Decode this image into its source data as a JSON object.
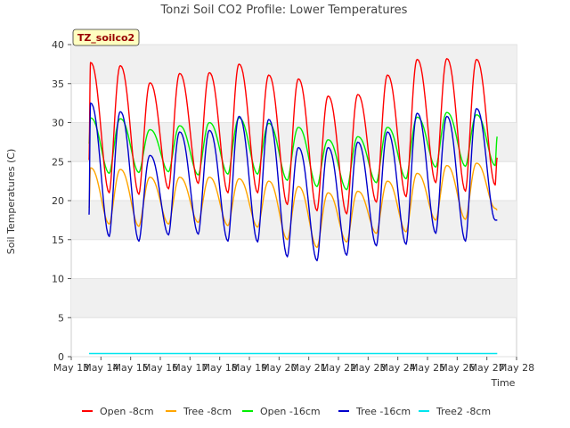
{
  "chart_data": {
    "type": "line",
    "title": "Tonzi Soil CO2 Profile: Lower Temperatures",
    "xlabel": "Time",
    "ylabel": "Soil Temperatures (C)",
    "site_label": "TZ_soilco2",
    "ylim": [
      0,
      40
    ],
    "yticks": [
      0,
      5,
      10,
      15,
      20,
      25,
      30,
      35,
      40
    ],
    "xlim": [
      13,
      28
    ],
    "xticks": [
      13,
      14,
      15,
      16,
      17,
      18,
      19,
      20,
      21,
      22,
      23,
      24,
      25,
      26,
      27,
      28
    ],
    "xtick_labels": [
      "May 13",
      "May 14",
      "May 15",
      "May 16",
      "May 17",
      "May 18",
      "May 19",
      "May 20",
      "May 21",
      "May 22",
      "May 23",
      "May 24",
      "May 25",
      "May 26",
      "May 27",
      "May 28"
    ],
    "grid": "horizontal bands",
    "legend": "bottom",
    "series": [
      {
        "name": "Open -8cm",
        "color": "#ff0000",
        "daily_min": [
          21.3,
          21.0,
          20.8,
          21.5,
          22.2,
          21.0,
          21.0,
          19.5,
          18.7,
          18.3,
          19.8,
          20.5,
          22.3,
          21.2,
          22.0
        ],
        "daily_max": [
          37.7,
          37.3,
          35.1,
          36.3,
          36.4,
          37.5,
          36.1,
          35.6,
          33.4,
          33.6,
          36.1,
          38.1,
          38.2,
          38.1
        ],
        "start": 25.2,
        "end": 25.5
      },
      {
        "name": "Tree -8cm",
        "color": "#ffa500",
        "daily_min": [
          18.0,
          17.0,
          16.7,
          17.0,
          17.2,
          16.8,
          16.6,
          15.0,
          14.0,
          14.7,
          15.8,
          16.0,
          17.5,
          17.6,
          19.0
        ],
        "daily_max": [
          24.2,
          24.0,
          23.0,
          23.0,
          23.0,
          22.8,
          22.5,
          21.8,
          21.0,
          21.2,
          22.5,
          23.5,
          24.5,
          24.8
        ],
        "start": 19.1,
        "end": 18.8
      },
      {
        "name": "Open -16cm",
        "color": "#00ee00",
        "daily_min": [
          23.8,
          23.5,
          23.6,
          23.7,
          23.3,
          23.4,
          23.4,
          22.6,
          21.8,
          21.4,
          22.3,
          22.8,
          24.3,
          24.4,
          24.5
        ],
        "daily_max": [
          30.6,
          30.5,
          29.1,
          29.6,
          30.0,
          30.6,
          29.9,
          29.4,
          27.8,
          28.2,
          29.4,
          30.7,
          31.3,
          31.0
        ],
        "start": 27.3,
        "end": 28.2
      },
      {
        "name": "Tree -16cm",
        "color": "#0000cc",
        "daily_min": [
          15.8,
          15.4,
          14.8,
          15.6,
          15.7,
          14.8,
          14.7,
          12.8,
          12.3,
          13.0,
          14.2,
          14.4,
          15.8,
          14.8,
          17.5
        ],
        "daily_max": [
          32.5,
          31.4,
          25.8,
          28.8,
          29.0,
          30.8,
          30.4,
          26.8,
          26.8,
          27.5,
          28.8,
          31.2,
          30.8,
          31.8
        ],
        "start": 18.2,
        "end": 17.5
      },
      {
        "name": "Tree2 -8cm",
        "color": "#00e5ee",
        "constant": 0.4,
        "start": 0.4,
        "end": 0.4
      }
    ]
  }
}
